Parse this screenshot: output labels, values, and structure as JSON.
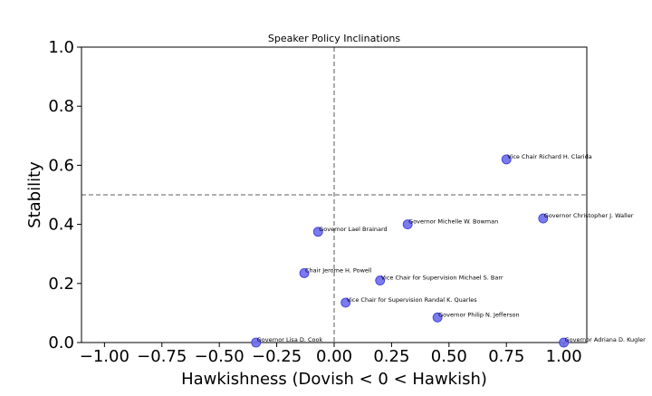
{
  "chart_data": {
    "type": "scatter",
    "title": "Speaker Policy Inclinations",
    "xlabel": "Hawkishness (Dovish < 0 < Hawkish)",
    "ylabel": "Stability",
    "xlim": [
      -1.1,
      1.1
    ],
    "ylim": [
      0.0,
      1.0
    ],
    "x_ticks": [
      -1.0,
      -0.75,
      -0.5,
      -0.25,
      0.0,
      0.25,
      0.5,
      0.75,
      1.0
    ],
    "x_tick_labels": [
      "−1.00",
      "−0.75",
      "−0.50",
      "−0.25",
      "0.00",
      "0.25",
      "0.50",
      "0.75",
      "1.00"
    ],
    "y_ticks": [
      0.0,
      0.2,
      0.4,
      0.6,
      0.8,
      1.0
    ],
    "y_tick_labels": [
      "0.0",
      "0.2",
      "0.4",
      "0.6",
      "0.8",
      "1.0"
    ],
    "reference_lines": {
      "x": 0.0,
      "y": 0.5,
      "style": "dashed"
    },
    "grid": false,
    "marker_color": "#6b6bef",
    "marker_edge_color": "#3a3ad6",
    "points": [
      {
        "label": "Vice Chair Richard H. Clarida",
        "x": 0.75,
        "y": 0.62
      },
      {
        "label": "Governor Christopher J. Waller",
        "x": 0.91,
        "y": 0.42
      },
      {
        "label": "Governor Michelle W. Bowman",
        "x": 0.32,
        "y": 0.4
      },
      {
        "label": "Governor Lael Brainard",
        "x": -0.07,
        "y": 0.375
      },
      {
        "label": "Chair Jerome H. Powell",
        "x": -0.13,
        "y": 0.235
      },
      {
        "label": "Vice Chair for Supervision Michael S. Barr",
        "x": 0.2,
        "y": 0.21
      },
      {
        "label": "Vice Chair for Supervision Randal K. Quarles",
        "x": 0.05,
        "y": 0.135
      },
      {
        "label": "Governor Philip N. Jefferson",
        "x": 0.45,
        "y": 0.085
      },
      {
        "label": "Governor Lisa D. Cook",
        "x": -0.34,
        "y": 0.0
      },
      {
        "label": "Governor Adriana D. Kugler",
        "x": 1.0,
        "y": 0.0
      }
    ]
  }
}
